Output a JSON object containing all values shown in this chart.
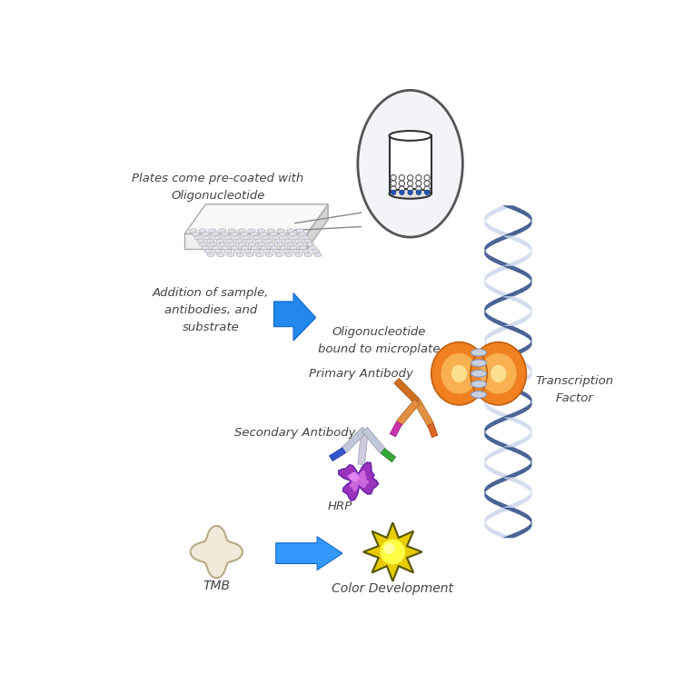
{
  "bg_color": "#ffffff",
  "text_color": "#444444",
  "dna_dark": "#1a3a7a",
  "dna_light": "#c8d4ea",
  "dna_shadow": "#9aaad0",
  "orange_main": "#f08020",
  "orange_light": "#f8c060",
  "arrow_blue": "#3399ff",
  "label_precoated": "Plates come pre-coated with\nOligonucleotide",
  "label_addition": "Addition of sample,\nantibodies, and\nsubstrate",
  "label_oligo": "Oligonucleotide\nbound to microplate",
  "label_primary": "Primary Antibody",
  "label_secondary": "Secondary Antibody",
  "label_hrp": "HRP",
  "label_tf": "Transcription\nFactor",
  "label_tmb": "TMB",
  "label_color": "Color Development"
}
